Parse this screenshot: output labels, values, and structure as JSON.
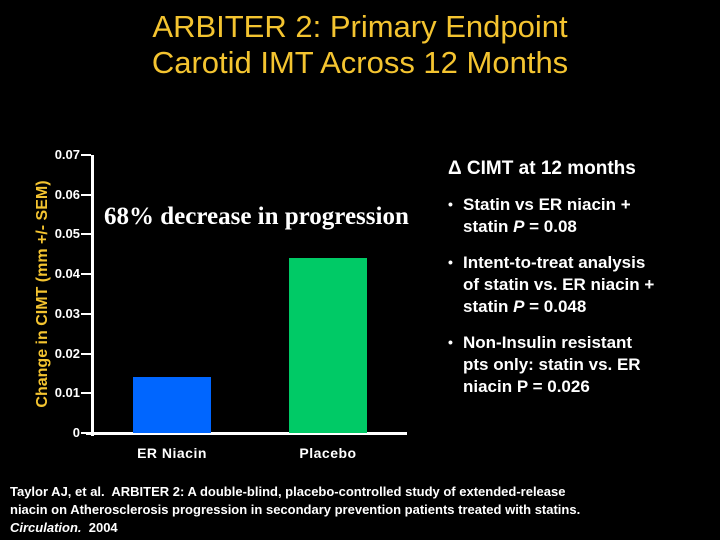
{
  "colors": {
    "background": "#000000",
    "gold": "#F4C430",
    "white": "#FFFFFF",
    "bar_blue": "#0066FF",
    "bar_green": "#00CA66"
  },
  "slide": {
    "title_lines": [
      "ARBITER 2: Primary Endpoint",
      "Carotid IMT Across 12 Months"
    ]
  },
  "chart_data": {
    "type": "bar",
    "title": "",
    "categories": [
      "ER Niacin",
      "Placebo"
    ],
    "values": [
      0.014,
      0.044
    ],
    "bar_colors": [
      "#0066FF",
      "#00CA66"
    ],
    "xlabel": "",
    "ylabel": "Change in CIMT (mm +/- SEM)",
    "ylim": [
      0,
      0.07
    ],
    "yticks": [
      0,
      0.01,
      0.02,
      0.03,
      0.04,
      0.05,
      0.06,
      0.07
    ],
    "ytick_labels": [
      "0",
      "0.01",
      "0.02",
      "0.03",
      "0.04",
      "0.05",
      "0.06",
      "0.07"
    ],
    "grid": false,
    "legend": false,
    "annotation": "68% decrease in progression"
  },
  "panel": {
    "heading": "Δ CIMT at 12 months",
    "bullet_glyph": "•",
    "bullets": [
      {
        "lines": [
          [
            {
              "t": "Statin vs ER niacin +"
            }
          ],
          [
            {
              "t": "statin "
            },
            {
              "t": "P",
              "i": true
            },
            {
              "t": " = 0.08"
            }
          ]
        ]
      },
      {
        "lines": [
          [
            {
              "t": "Intent-to-treat analysis"
            }
          ],
          [
            {
              "t": "of statin vs. ER niacin +"
            }
          ],
          [
            {
              "t": "statin "
            },
            {
              "t": "P",
              "i": true
            },
            {
              "t": " = 0.048"
            }
          ]
        ]
      },
      {
        "lines": [
          [
            {
              "t": "Non-Insulin resistant"
            }
          ],
          [
            {
              "t": "pts only: statin vs. ER"
            }
          ],
          [
            {
              "t": "niacin P = 0.026"
            }
          ]
        ]
      }
    ]
  },
  "citation": {
    "lines": [
      [
        {
          "t": "Taylor AJ, et al.  ARBITER 2: A double-blind, placebo-controlled study of extended-release"
        }
      ],
      [
        {
          "t": "niacin on Atherosclerosis progression in secondary prevention patients treated with statins."
        }
      ],
      [
        {
          "t": "Circulation.",
          "i": true
        },
        {
          "t": "  2004"
        }
      ]
    ]
  }
}
